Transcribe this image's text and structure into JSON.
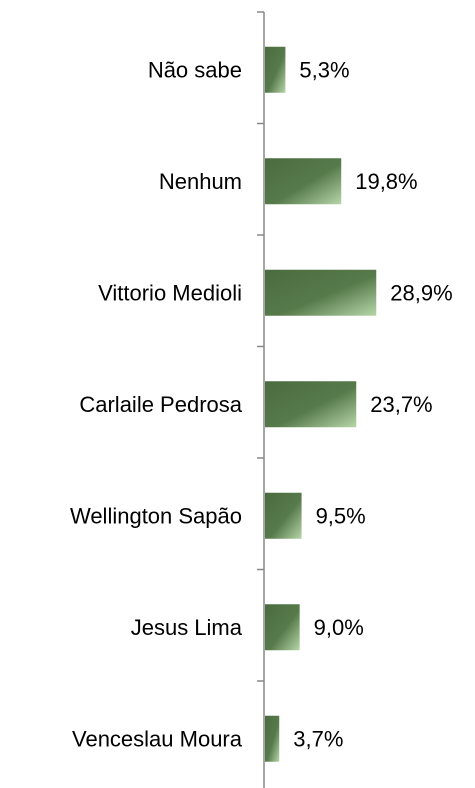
{
  "chart_data": {
    "type": "bar",
    "orientation": "horizontal",
    "categories": [
      "Não sabe",
      "Nenhum",
      "Vittorio Medioli",
      "Carlaile Pedrosa",
      "Wellington Sapão",
      "Jesus Lima",
      "Venceslau Moura"
    ],
    "values": [
      5.3,
      19.8,
      28.9,
      23.7,
      9.5,
      9.0,
      3.7
    ],
    "value_labels": [
      "5,3%",
      "19,8%",
      "28,9%",
      "23,7%",
      "9,5%",
      "9,0%",
      "3,7%"
    ],
    "color": "#4d6f42"
  }
}
